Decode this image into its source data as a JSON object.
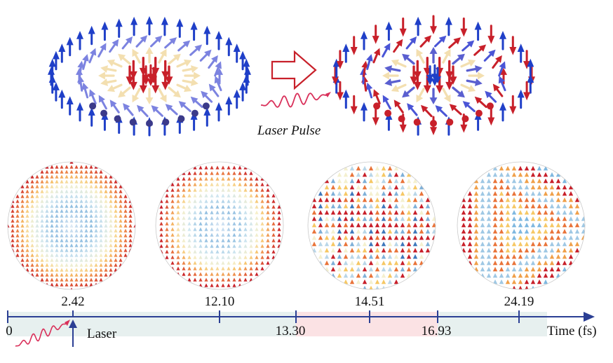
{
  "top_panel": {
    "caption": "Laser Pulse"
  },
  "snapshots": [
    {
      "time": "2.42"
    },
    {
      "time": "12.10"
    },
    {
      "time": "14.51"
    },
    {
      "time": "24.19"
    }
  ],
  "timeline": {
    "origin_label": "0",
    "laser_label": "Laser",
    "lower_ticks": [
      "13.30",
      "16.93"
    ],
    "axis_title": "Time (fs)"
  },
  "colors": {
    "axis": "#2b3f94",
    "arrow_blue": "#1f3fc8",
    "arrow_red": "#c8202a",
    "wave": "#d9305a",
    "hollow_arrow": "#c8202a",
    "band_gray": "#e7f0ef",
    "band_pink": "#fbe2e4",
    "cream": "#f3dfb0"
  },
  "icons": [
    "laser-wave-icon",
    "hollow-right-arrow-icon",
    "laser-marker-arrow-icon"
  ]
}
